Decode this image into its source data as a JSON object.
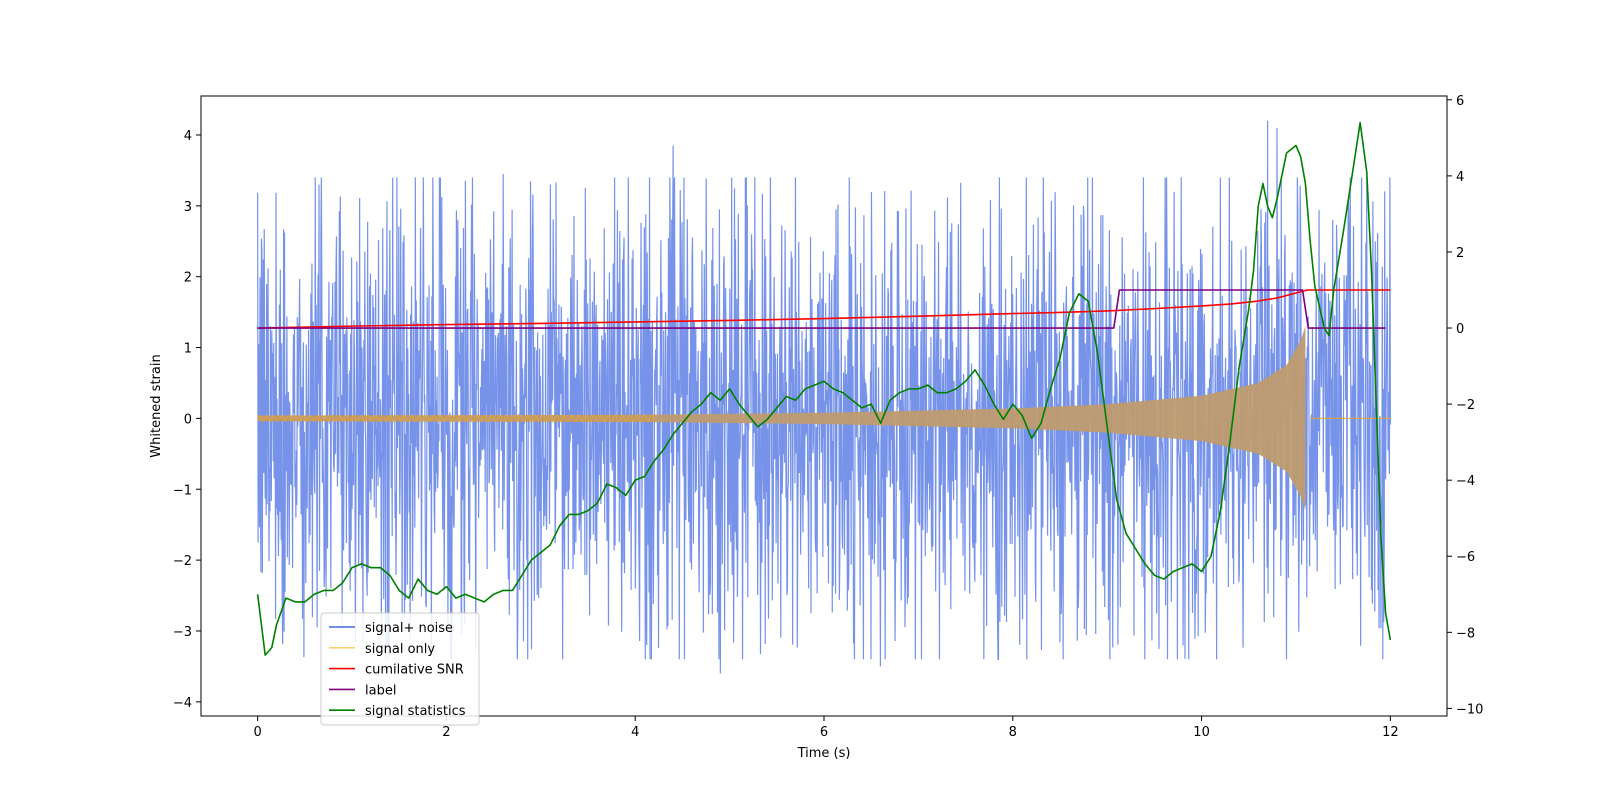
{
  "chart_data": {
    "type": "line",
    "title": "",
    "xlabel": "Time (s)",
    "ylabel": "Whitened strain",
    "ylabel_right": "",
    "xlim": [
      -0.6,
      12.6
    ],
    "ylim": [
      -4.2,
      4.55
    ],
    "ylim_right": [
      -10.2,
      6.1
    ],
    "xticks": [
      0,
      2,
      4,
      6,
      8,
      10,
      12
    ],
    "xtick_labels": [
      "0",
      "2",
      "4",
      "6",
      "8",
      "10",
      "12"
    ],
    "yticks": [
      -4,
      -3,
      -2,
      -1,
      0,
      1,
      2,
      3,
      4
    ],
    "ytick_labels": [
      "−4",
      "−3",
      "−2",
      "−1",
      "0",
      "1",
      "2",
      "3",
      "4"
    ],
    "yticks_right": [
      -10,
      -8,
      -6,
      -4,
      -2,
      0,
      2,
      4,
      6
    ],
    "ytick_labels_right": [
      "−10",
      "−8",
      "−6",
      "−4",
      "−2",
      "0",
      "2",
      "4",
      "6"
    ],
    "legend_position": "lower-left",
    "series": [
      {
        "name": "signal+ noise",
        "color": "#4169e1",
        "axis": "left",
        "description": "noisy whitened strain, roughly uniform band between about -2.5 and 2.5 with peaks near -3.6 and 4.2",
        "band_low": -2.5,
        "band_high": 2.5,
        "peaks": [
          [
            0.65,
            3.3
          ],
          [
            2.2,
            3.35
          ],
          [
            2.6,
            3.45
          ],
          [
            3.1,
            3.3
          ],
          [
            4.4,
            3.85
          ],
          [
            8.75,
            3.0
          ],
          [
            10.7,
            4.2
          ],
          [
            10.8,
            4.1
          ],
          [
            4.9,
            -3.6
          ],
          [
            6.6,
            -3.5
          ],
          [
            9.4,
            -3.4
          ],
          [
            10.9,
            -3.4
          ]
        ]
      },
      {
        "name": "signal only",
        "color": "#ffa500",
        "axis": "left",
        "description": "chirp waveform with amplitude growing from ~0.04 at t=0 to ~1.3 at merger t≈11.1, then flat zero",
        "envelope": [
          [
            0,
            0.04
          ],
          [
            4,
            0.05
          ],
          [
            6,
            0.08
          ],
          [
            8,
            0.14
          ],
          [
            9,
            0.2
          ],
          [
            10,
            0.32
          ],
          [
            10.6,
            0.5
          ],
          [
            10.9,
            0.75
          ],
          [
            11.05,
            1.1
          ],
          [
            11.1,
            1.3
          ],
          [
            11.15,
            0
          ]
        ],
        "merger_time": 11.1,
        "end_time": 12.0
      },
      {
        "name": "cumilative SNR",
        "color": "#ff0000",
        "axis": "right",
        "points": [
          [
            0,
            0.0
          ],
          [
            1,
            0.05
          ],
          [
            2,
            0.09
          ],
          [
            3,
            0.12
          ],
          [
            4,
            0.16
          ],
          [
            5,
            0.2
          ],
          [
            6,
            0.25
          ],
          [
            7,
            0.31
          ],
          [
            8,
            0.38
          ],
          [
            8.5,
            0.41
          ],
          [
            9,
            0.45
          ],
          [
            9.5,
            0.51
          ],
          [
            10,
            0.58
          ],
          [
            10.3,
            0.63
          ],
          [
            10.6,
            0.71
          ],
          [
            10.8,
            0.79
          ],
          [
            11,
            0.92
          ],
          [
            11.12,
            1.0
          ],
          [
            12,
            1.0
          ]
        ]
      },
      {
        "name": "label",
        "color": "#800080",
        "axis": "right",
        "points": [
          [
            0,
            0
          ],
          [
            9.07,
            0
          ],
          [
            9.13,
            1
          ],
          [
            11.07,
            1
          ],
          [
            11.13,
            0
          ],
          [
            11.95,
            0
          ]
        ]
      },
      {
        "name": "signal statistics",
        "color": "#008000",
        "axis": "right",
        "points": [
          [
            0,
            -7.0
          ],
          [
            0.08,
            -8.6
          ],
          [
            0.15,
            -8.4
          ],
          [
            0.2,
            -7.8
          ],
          [
            0.3,
            -7.1
          ],
          [
            0.4,
            -7.2
          ],
          [
            0.5,
            -7.2
          ],
          [
            0.6,
            -7.0
          ],
          [
            0.7,
            -6.9
          ],
          [
            0.8,
            -6.9
          ],
          [
            0.9,
            -6.7
          ],
          [
            1.0,
            -6.3
          ],
          [
            1.1,
            -6.2
          ],
          [
            1.2,
            -6.3
          ],
          [
            1.3,
            -6.3
          ],
          [
            1.4,
            -6.5
          ],
          [
            1.5,
            -6.9
          ],
          [
            1.6,
            -7.1
          ],
          [
            1.7,
            -6.6
          ],
          [
            1.8,
            -6.9
          ],
          [
            1.9,
            -7.0
          ],
          [
            2.0,
            -6.8
          ],
          [
            2.1,
            -7.1
          ],
          [
            2.2,
            -7.0
          ],
          [
            2.3,
            -7.1
          ],
          [
            2.4,
            -7.2
          ],
          [
            2.5,
            -7.0
          ],
          [
            2.6,
            -6.9
          ],
          [
            2.7,
            -6.9
          ],
          [
            2.8,
            -6.5
          ],
          [
            2.9,
            -6.1
          ],
          [
            3.0,
            -5.9
          ],
          [
            3.1,
            -5.7
          ],
          [
            3.2,
            -5.2
          ],
          [
            3.3,
            -4.9
          ],
          [
            3.4,
            -4.9
          ],
          [
            3.5,
            -4.8
          ],
          [
            3.6,
            -4.6
          ],
          [
            3.7,
            -4.1
          ],
          [
            3.8,
            -4.2
          ],
          [
            3.9,
            -4.4
          ],
          [
            4.0,
            -4.0
          ],
          [
            4.1,
            -3.9
          ],
          [
            4.2,
            -3.5
          ],
          [
            4.3,
            -3.2
          ],
          [
            4.4,
            -2.8
          ],
          [
            4.5,
            -2.5
          ],
          [
            4.6,
            -2.2
          ],
          [
            4.7,
            -2.0
          ],
          [
            4.8,
            -1.7
          ],
          [
            4.9,
            -1.9
          ],
          [
            5.0,
            -1.6
          ],
          [
            5.1,
            -2.0
          ],
          [
            5.2,
            -2.3
          ],
          [
            5.3,
            -2.6
          ],
          [
            5.4,
            -2.4
          ],
          [
            5.5,
            -2.1
          ],
          [
            5.6,
            -1.8
          ],
          [
            5.7,
            -1.9
          ],
          [
            5.8,
            -1.6
          ],
          [
            5.9,
            -1.5
          ],
          [
            6.0,
            -1.4
          ],
          [
            6.1,
            -1.6
          ],
          [
            6.2,
            -1.7
          ],
          [
            6.3,
            -1.9
          ],
          [
            6.4,
            -2.1
          ],
          [
            6.5,
            -2.0
          ],
          [
            6.6,
            -2.5
          ],
          [
            6.7,
            -1.9
          ],
          [
            6.8,
            -1.7
          ],
          [
            6.9,
            -1.6
          ],
          [
            7.0,
            -1.6
          ],
          [
            7.1,
            -1.5
          ],
          [
            7.2,
            -1.7
          ],
          [
            7.3,
            -1.7
          ],
          [
            7.4,
            -1.6
          ],
          [
            7.5,
            -1.4
          ],
          [
            7.6,
            -1.1
          ],
          [
            7.7,
            -1.5
          ],
          [
            7.8,
            -2.0
          ],
          [
            7.9,
            -2.4
          ],
          [
            8.0,
            -2.0
          ],
          [
            8.1,
            -2.3
          ],
          [
            8.2,
            -2.9
          ],
          [
            8.3,
            -2.5
          ],
          [
            8.4,
            -1.6
          ],
          [
            8.5,
            -0.8
          ],
          [
            8.6,
            0.4
          ],
          [
            8.7,
            0.9
          ],
          [
            8.8,
            0.7
          ],
          [
            8.9,
            -0.7
          ],
          [
            9.0,
            -2.6
          ],
          [
            9.1,
            -4.5
          ],
          [
            9.2,
            -5.4
          ],
          [
            9.3,
            -5.8
          ],
          [
            9.4,
            -6.2
          ],
          [
            9.5,
            -6.5
          ],
          [
            9.6,
            -6.6
          ],
          [
            9.7,
            -6.4
          ],
          [
            9.8,
            -6.3
          ],
          [
            9.9,
            -6.2
          ],
          [
            10.0,
            -6.4
          ],
          [
            10.1,
            -6.0
          ],
          [
            10.2,
            -4.8
          ],
          [
            10.3,
            -3.0
          ],
          [
            10.4,
            -1.0
          ],
          [
            10.5,
            0.5
          ],
          [
            10.55,
            1.5
          ],
          [
            10.6,
            3.2
          ],
          [
            10.65,
            3.8
          ],
          [
            10.7,
            3.2
          ],
          [
            10.75,
            2.9
          ],
          [
            10.8,
            3.4
          ],
          [
            10.9,
            4.6
          ],
          [
            11.0,
            4.8
          ],
          [
            11.05,
            4.5
          ],
          [
            11.1,
            3.8
          ],
          [
            11.15,
            2.3
          ],
          [
            11.2,
            1.1
          ],
          [
            11.3,
            0.0
          ],
          [
            11.35,
            -0.2
          ],
          [
            11.4,
            1.0
          ],
          [
            11.5,
            2.5
          ],
          [
            11.6,
            4.1
          ],
          [
            11.68,
            5.4
          ],
          [
            11.75,
            4.1
          ],
          [
            11.8,
            1.5
          ],
          [
            11.85,
            -2.0
          ],
          [
            11.9,
            -5.5
          ],
          [
            11.95,
            -7.5
          ],
          [
            12.0,
            -8.2
          ]
        ]
      }
    ]
  }
}
